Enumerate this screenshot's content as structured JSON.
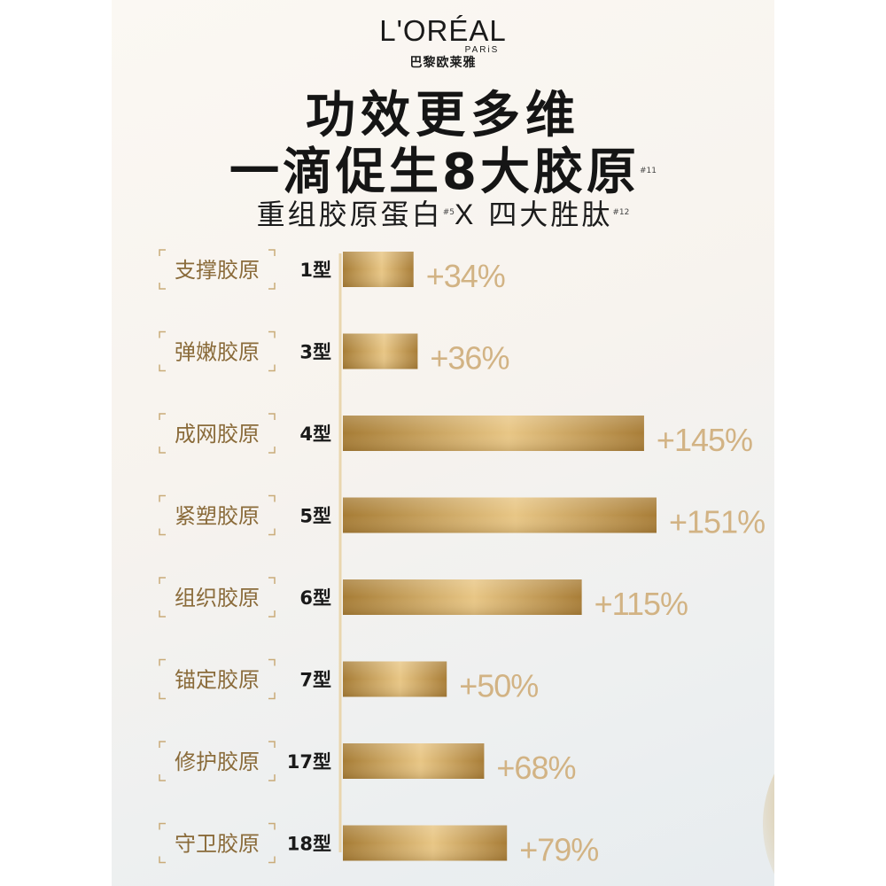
{
  "brand": {
    "logo": "L'ORÉAL",
    "logo_sub": "PARiS",
    "logo_cn": "巴黎欧莱雅"
  },
  "headline": {
    "line1": "功效更多维",
    "line2": "一滴促生8大胶原",
    "line2_note": "#11",
    "line3_a": "重组胶原蛋白",
    "line3_a_note": "#5",
    "line3_x": "X",
    "line3_b": "四大胜肽",
    "line3_b_note": "#12"
  },
  "colors": {
    "bar_dark": "#a67c35",
    "bar_light": "#eac98a",
    "label_text": "#8a6b3a",
    "value_text": "#d2b384",
    "bracket": "#c9ab78",
    "type_text": "#1a1a1a",
    "axis": "#e9d6ae"
  },
  "chart_data": {
    "type": "bar",
    "orientation": "horizontal",
    "categories": [
      "支撑胶原",
      "弹嫩胶原",
      "成网胶原",
      "紧塑胶原",
      "组织胶原",
      "锚定胶原",
      "修护胶原",
      "守卫胶原"
    ],
    "types": [
      "1型",
      "3型",
      "4型",
      "5型",
      "6型",
      "7型",
      "17型",
      "18型"
    ],
    "values": [
      34,
      36,
      145,
      151,
      115,
      50,
      68,
      79
    ],
    "value_labels": [
      "+34%",
      "+36%",
      "+145%",
      "+151%",
      "+115%",
      "+50%",
      "+68%",
      "+79%"
    ],
    "unit": "%",
    "xlim": [
      0,
      151
    ],
    "grid": false,
    "legend": "none"
  }
}
